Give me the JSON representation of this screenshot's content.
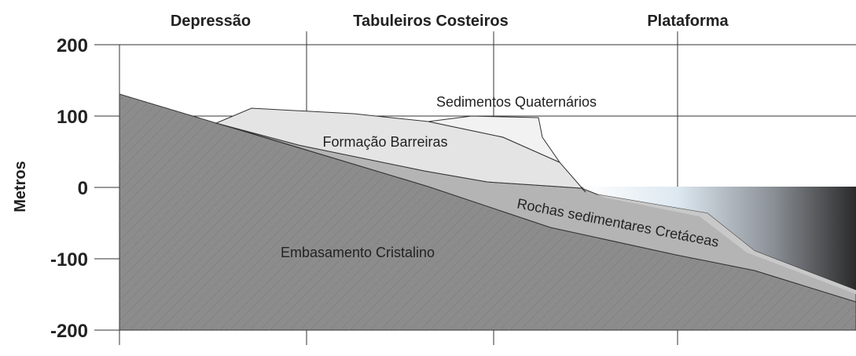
{
  "headers": [
    "Depressão",
    "Tabuleiros Costeiros",
    "Plataforma"
  ],
  "y_axis": {
    "label": "Metros",
    "ticks": [
      200,
      100,
      0,
      -100,
      -200
    ]
  },
  "layers": {
    "quaternary": "Sedimentos Quaternários",
    "barreiras": "Formação Barreiras",
    "cretaceous": "Rochas sedimentares Cretáceas",
    "basement": "Embasamento Cristalino"
  }
}
